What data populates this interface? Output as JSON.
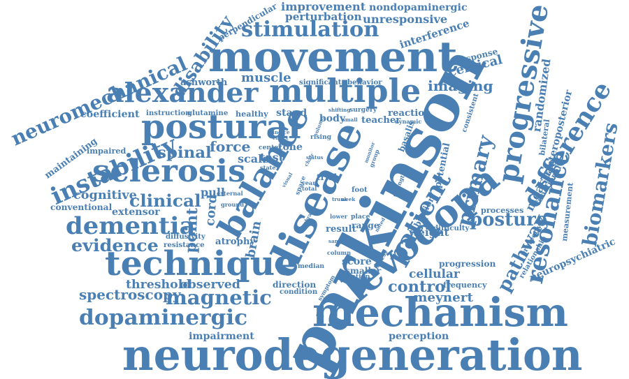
{
  "word_color": "#4a7fb3",
  "background": "#ffffff",
  "words": [
    "parkinson",
    "neurodegeneration",
    "movement",
    "disease",
    "mechanism",
    "levodopa",
    "technique",
    "balance",
    "multiple",
    "postural",
    "sclerosis",
    "alexander",
    "progressive",
    "dementia",
    "patient",
    "dopaminergic",
    "stimulation",
    "instability",
    "resonance",
    "difference",
    "primary",
    "magnetic",
    "neuromechanical",
    "biomarkers",
    "disability",
    "posture",
    "evidence",
    "clinical",
    "spectroscopy",
    "observed",
    "threshold",
    "spinal",
    "pathway",
    "point",
    "force",
    "control",
    "cognitive",
    "muscle",
    "imaging",
    "cervical",
    "improvement",
    "nondopaminergic",
    "perturbation",
    "unresponsive",
    "interference",
    "perpendicular",
    "brain",
    "randomized",
    "anteroposterior",
    "measure",
    "neuropsychiatric",
    "cellular",
    "meynert",
    "perception",
    "impairment",
    "coefficient",
    "ashworth",
    "maintaining",
    "conventional",
    "extensor",
    "pull",
    "cord",
    "stand",
    "tone",
    "test",
    "scale",
    "atrophy",
    "result",
    "weight",
    "score",
    "range",
    "smaller",
    "direction",
    "condition",
    "progression",
    "frequency",
    "vibration",
    "potential",
    "basalis",
    "reaction",
    "teacher",
    "body",
    "healthy",
    "instruction",
    "glutamine",
    "impaired",
    "diffusivity",
    "resistance",
    "response",
    "functional",
    "measurement",
    "protective",
    "relationship",
    "bilateral",
    "consistent",
    "processes",
    "difficulty",
    "significant",
    "behavior",
    "shifting",
    "surgery",
    "dynamic",
    "rising",
    "center",
    "state",
    "trial",
    "space",
    "foot",
    "place",
    "lower",
    "stiffness",
    "duration",
    "median",
    "column",
    "symptom",
    "external",
    "ground",
    "strength",
    "group",
    "visual",
    "year",
    "total",
    "week",
    "trunk",
    "volume",
    "chair",
    "indice",
    "effect",
    "status",
    "small",
    "monitor",
    "cerebral",
    "noted",
    "sample"
  ]
}
